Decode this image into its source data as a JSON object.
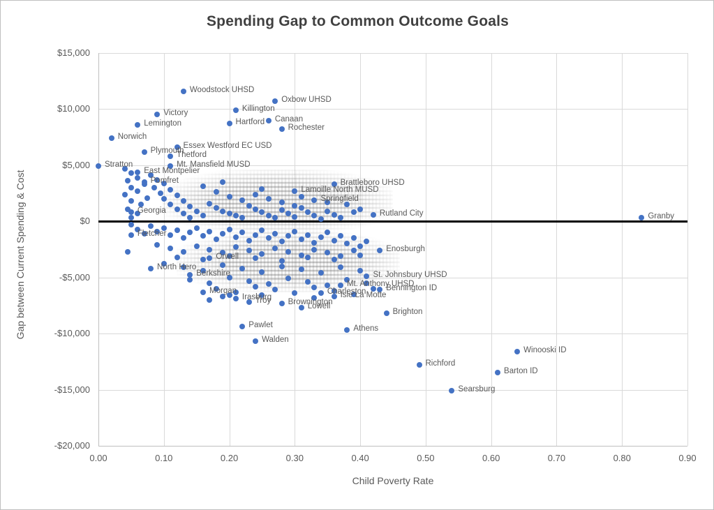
{
  "title": "Spending Gap to Common Outcome Goals",
  "chart_data": {
    "type": "scatter",
    "title": "Spending Gap to Common Outcome Goals",
    "xlabel": "Child Poverty Rate",
    "ylabel": "Gap between Current Spending & Cost",
    "xlim": [
      0,
      0.9
    ],
    "ylim": [
      -20000,
      15000
    ],
    "grid": true,
    "legend": "none",
    "marker_color": "#4472C4",
    "label_color": "#595959",
    "gridline_color": "#d9d9d9",
    "zero_line_color": "#000000",
    "x_ticks": [
      "0.00",
      "0.10",
      "0.20",
      "0.30",
      "0.40",
      "0.50",
      "0.60",
      "0.70",
      "0.80",
      "0.90"
    ],
    "x_tick_values": [
      0,
      0.1,
      0.2,
      0.3,
      0.4,
      0.5,
      0.6,
      0.7,
      0.8,
      0.9
    ],
    "y_ticks": [
      "$15,000",
      "$10,000",
      "$5,000",
      "$0",
      "-$5,000",
      "-$10,000",
      "-$15,000",
      "-$20,000"
    ],
    "y_tick_values": [
      15000,
      10000,
      5000,
      0,
      -5000,
      -10000,
      -15000,
      -20000
    ],
    "labeled_points": [
      {
        "label": "Woodstock UHSD",
        "x": 0.13,
        "y": 11600
      },
      {
        "label": "Oxbow UHSD",
        "x": 0.27,
        "y": 10700
      },
      {
        "label": "Killington",
        "x": 0.21,
        "y": 9900
      },
      {
        "label": "Victory",
        "x": 0.09,
        "y": 9500
      },
      {
        "label": "Canaan",
        "x": 0.26,
        "y": 9000
      },
      {
        "label": "Hartford",
        "x": 0.2,
        "y": 8700
      },
      {
        "label": "Lemington",
        "x": 0.06,
        "y": 8600
      },
      {
        "label": "Rochester",
        "x": 0.28,
        "y": 8200
      },
      {
        "label": "Norwich",
        "x": 0.02,
        "y": 7400
      },
      {
        "label": "Essex Westford EC USD",
        "x": 0.12,
        "y": 6600
      },
      {
        "label": "Plymouth",
        "x": 0.07,
        "y": 6200
      },
      {
        "label": "Thetford",
        "x": 0.11,
        "y": 5800
      },
      {
        "label": "Mt. Mansfield MUSD",
        "x": 0.11,
        "y": 4900
      },
      {
        "label": "Stratton",
        "x": 0.0,
        "y": 4900
      },
      {
        "label": "East Montpelier",
        "x": 0.06,
        "y": 4400
      },
      {
        "label": "Pomfret",
        "x": 0.07,
        "y": 3500
      },
      {
        "label": "Brattleboro UHSD",
        "x": 0.36,
        "y": 3300
      },
      {
        "label": "Lamoille North MUSD",
        "x": 0.3,
        "y": 2700
      },
      {
        "label": "Springfield",
        "x": 0.33,
        "y": 1900
      },
      {
        "label": "Georgia",
        "x": 0.05,
        "y": 800
      },
      {
        "label": "Rutland City",
        "x": 0.42,
        "y": 600
      },
      {
        "label": "Granby",
        "x": 0.83,
        "y": 300
      },
      {
        "label": "Fletcher",
        "x": 0.05,
        "y": -1200
      },
      {
        "label": "Enosburgh",
        "x": 0.43,
        "y": -2600
      },
      {
        "label": "Orwell",
        "x": 0.17,
        "y": -3300
      },
      {
        "label": "North Hero",
        "x": 0.08,
        "y": -4200
      },
      {
        "label": "Berkshire",
        "x": 0.14,
        "y": -4800
      },
      {
        "label": "St. Johnsbury UHSD",
        "x": 0.41,
        "y": -4900
      },
      {
        "label": "Mt. Anthony UHSD",
        "x": 0.37,
        "y": -5700
      },
      {
        "label": "Bennington ID",
        "x": 0.43,
        "y": -6100
      },
      {
        "label": "Morgan",
        "x": 0.16,
        "y": -6300
      },
      {
        "label": "Charleston",
        "x": 0.34,
        "y": -6400
      },
      {
        "label": "Isle La Motte",
        "x": 0.36,
        "y": -6700
      },
      {
        "label": "Irasburg",
        "x": 0.21,
        "y": -6900
      },
      {
        "label": "Troy",
        "x": 0.23,
        "y": -7200
      },
      {
        "label": "Brownington",
        "x": 0.28,
        "y": -7300
      },
      {
        "label": "Lowell",
        "x": 0.31,
        "y": -7700
      },
      {
        "label": "Brighton",
        "x": 0.44,
        "y": -8200
      },
      {
        "label": "Pawlet",
        "x": 0.22,
        "y": -9400
      },
      {
        "label": "Athens",
        "x": 0.38,
        "y": -9700
      },
      {
        "label": "Walden",
        "x": 0.24,
        "y": -10700
      },
      {
        "label": "Winooski ID",
        "x": 0.64,
        "y": -11600
      },
      {
        "label": "Richford",
        "x": 0.49,
        "y": -12800
      },
      {
        "label": "Barton ID",
        "x": 0.61,
        "y": -13500
      },
      {
        "label": "Searsburg",
        "x": 0.54,
        "y": -15100
      }
    ],
    "unlabeled_cluster_points": [
      [
        0.04,
        4700
      ],
      [
        0.05,
        4300
      ],
      [
        0.06,
        3900
      ],
      [
        0.045,
        3600
      ],
      [
        0.07,
        3300
      ],
      [
        0.05,
        3000
      ],
      [
        0.06,
        2700
      ],
      [
        0.04,
        2400
      ],
      [
        0.075,
        2100
      ],
      [
        0.05,
        1800
      ],
      [
        0.065,
        1500
      ],
      [
        0.045,
        1100
      ],
      [
        0.06,
        700
      ],
      [
        0.05,
        300
      ],
      [
        0.08,
        4100
      ],
      [
        0.09,
        3700
      ],
      [
        0.1,
        3400
      ],
      [
        0.085,
        3000
      ],
      [
        0.11,
        2800
      ],
      [
        0.095,
        2500
      ],
      [
        0.12,
        2300
      ],
      [
        0.1,
        2000
      ],
      [
        0.13,
        1800
      ],
      [
        0.11,
        1500
      ],
      [
        0.14,
        1300
      ],
      [
        0.12,
        1100
      ],
      [
        0.15,
        900
      ],
      [
        0.13,
        700
      ],
      [
        0.16,
        500
      ],
      [
        0.14,
        300
      ],
      [
        0.17,
        1600
      ],
      [
        0.18,
        1200
      ],
      [
        0.19,
        900
      ],
      [
        0.2,
        700
      ],
      [
        0.21,
        500
      ],
      [
        0.22,
        300
      ],
      [
        0.23,
        1400
      ],
      [
        0.24,
        1100
      ],
      [
        0.25,
        800
      ],
      [
        0.26,
        500
      ],
      [
        0.27,
        300
      ],
      [
        0.28,
        1000
      ],
      [
        0.29,
        700
      ],
      [
        0.3,
        400
      ],
      [
        0.31,
        1200
      ],
      [
        0.32,
        800
      ],
      [
        0.33,
        500
      ],
      [
        0.34,
        200
      ],
      [
        0.35,
        900
      ],
      [
        0.36,
        600
      ],
      [
        0.37,
        300
      ],
      [
        0.38,
        1500
      ],
      [
        0.39,
        800
      ],
      [
        0.18,
        2600
      ],
      [
        0.2,
        2200
      ],
      [
        0.22,
        1900
      ],
      [
        0.24,
        2400
      ],
      [
        0.26,
        2000
      ],
      [
        0.28,
        1700
      ],
      [
        0.3,
        1400
      ],
      [
        0.16,
        3100
      ],
      [
        0.19,
        3500
      ],
      [
        0.25,
        2900
      ],
      [
        0.31,
        2200
      ],
      [
        0.35,
        1700
      ],
      [
        0.4,
        1100
      ],
      [
        0.05,
        -300
      ],
      [
        0.06,
        -700
      ],
      [
        0.07,
        -1100
      ],
      [
        0.08,
        -400
      ],
      [
        0.09,
        -900
      ],
      [
        0.1,
        -600
      ],
      [
        0.11,
        -1200
      ],
      [
        0.12,
        -800
      ],
      [
        0.13,
        -1500
      ],
      [
        0.14,
        -1000
      ],
      [
        0.15,
        -600
      ],
      [
        0.16,
        -1300
      ],
      [
        0.17,
        -900
      ],
      [
        0.18,
        -1600
      ],
      [
        0.19,
        -1100
      ],
      [
        0.2,
        -700
      ],
      [
        0.21,
        -1400
      ],
      [
        0.22,
        -1000
      ],
      [
        0.23,
        -1700
      ],
      [
        0.24,
        -1200
      ],
      [
        0.25,
        -800
      ],
      [
        0.26,
        -1500
      ],
      [
        0.27,
        -1100
      ],
      [
        0.28,
        -1800
      ],
      [
        0.29,
        -1300
      ],
      [
        0.3,
        -900
      ],
      [
        0.31,
        -1600
      ],
      [
        0.32,
        -1200
      ],
      [
        0.33,
        -1900
      ],
      [
        0.34,
        -1400
      ],
      [
        0.35,
        -1000
      ],
      [
        0.36,
        -1700
      ],
      [
        0.37,
        -1300
      ],
      [
        0.38,
        -2000
      ],
      [
        0.39,
        -1500
      ],
      [
        0.4,
        -2200
      ],
      [
        0.41,
        -1800
      ],
      [
        0.09,
        -2100
      ],
      [
        0.11,
        -2400
      ],
      [
        0.13,
        -2700
      ],
      [
        0.15,
        -2200
      ],
      [
        0.17,
        -2500
      ],
      [
        0.19,
        -2800
      ],
      [
        0.21,
        -2300
      ],
      [
        0.23,
        -2600
      ],
      [
        0.25,
        -2900
      ],
      [
        0.27,
        -2400
      ],
      [
        0.29,
        -2700
      ],
      [
        0.31,
        -3000
      ],
      [
        0.33,
        -2500
      ],
      [
        0.35,
        -2800
      ],
      [
        0.37,
        -3100
      ],
      [
        0.39,
        -2600
      ],
      [
        0.12,
        -3200
      ],
      [
        0.16,
        -3400
      ],
      [
        0.2,
        -3100
      ],
      [
        0.24,
        -3300
      ],
      [
        0.28,
        -3500
      ],
      [
        0.32,
        -3200
      ],
      [
        0.36,
        -3400
      ],
      [
        0.4,
        -3000
      ],
      [
        0.045,
        -2700
      ],
      [
        0.1,
        -3800
      ],
      [
        0.13,
        -4100
      ],
      [
        0.16,
        -4400
      ],
      [
        0.19,
        -3900
      ],
      [
        0.22,
        -4200
      ],
      [
        0.25,
        -4500
      ],
      [
        0.28,
        -4000
      ],
      [
        0.31,
        -4300
      ],
      [
        0.34,
        -4600
      ],
      [
        0.37,
        -4100
      ],
      [
        0.4,
        -4400
      ],
      [
        0.14,
        -5200
      ],
      [
        0.17,
        -5500
      ],
      [
        0.2,
        -5000
      ],
      [
        0.23,
        -5300
      ],
      [
        0.26,
        -5600
      ],
      [
        0.29,
        -5100
      ],
      [
        0.32,
        -5400
      ],
      [
        0.35,
        -5700
      ],
      [
        0.38,
        -5200
      ],
      [
        0.41,
        -5500
      ],
      [
        0.18,
        -6000
      ],
      [
        0.21,
        -6300
      ],
      [
        0.24,
        -5800
      ],
      [
        0.27,
        -6100
      ],
      [
        0.3,
        -6400
      ],
      [
        0.33,
        -5900
      ],
      [
        0.36,
        -6200
      ],
      [
        0.39,
        -6500
      ],
      [
        0.42,
        -6000
      ],
      [
        0.19,
        -6700
      ],
      [
        0.25,
        -6600
      ],
      [
        0.33,
        -6800
      ],
      [
        0.17,
        -7000
      ],
      [
        0.2,
        -6600
      ]
    ]
  }
}
